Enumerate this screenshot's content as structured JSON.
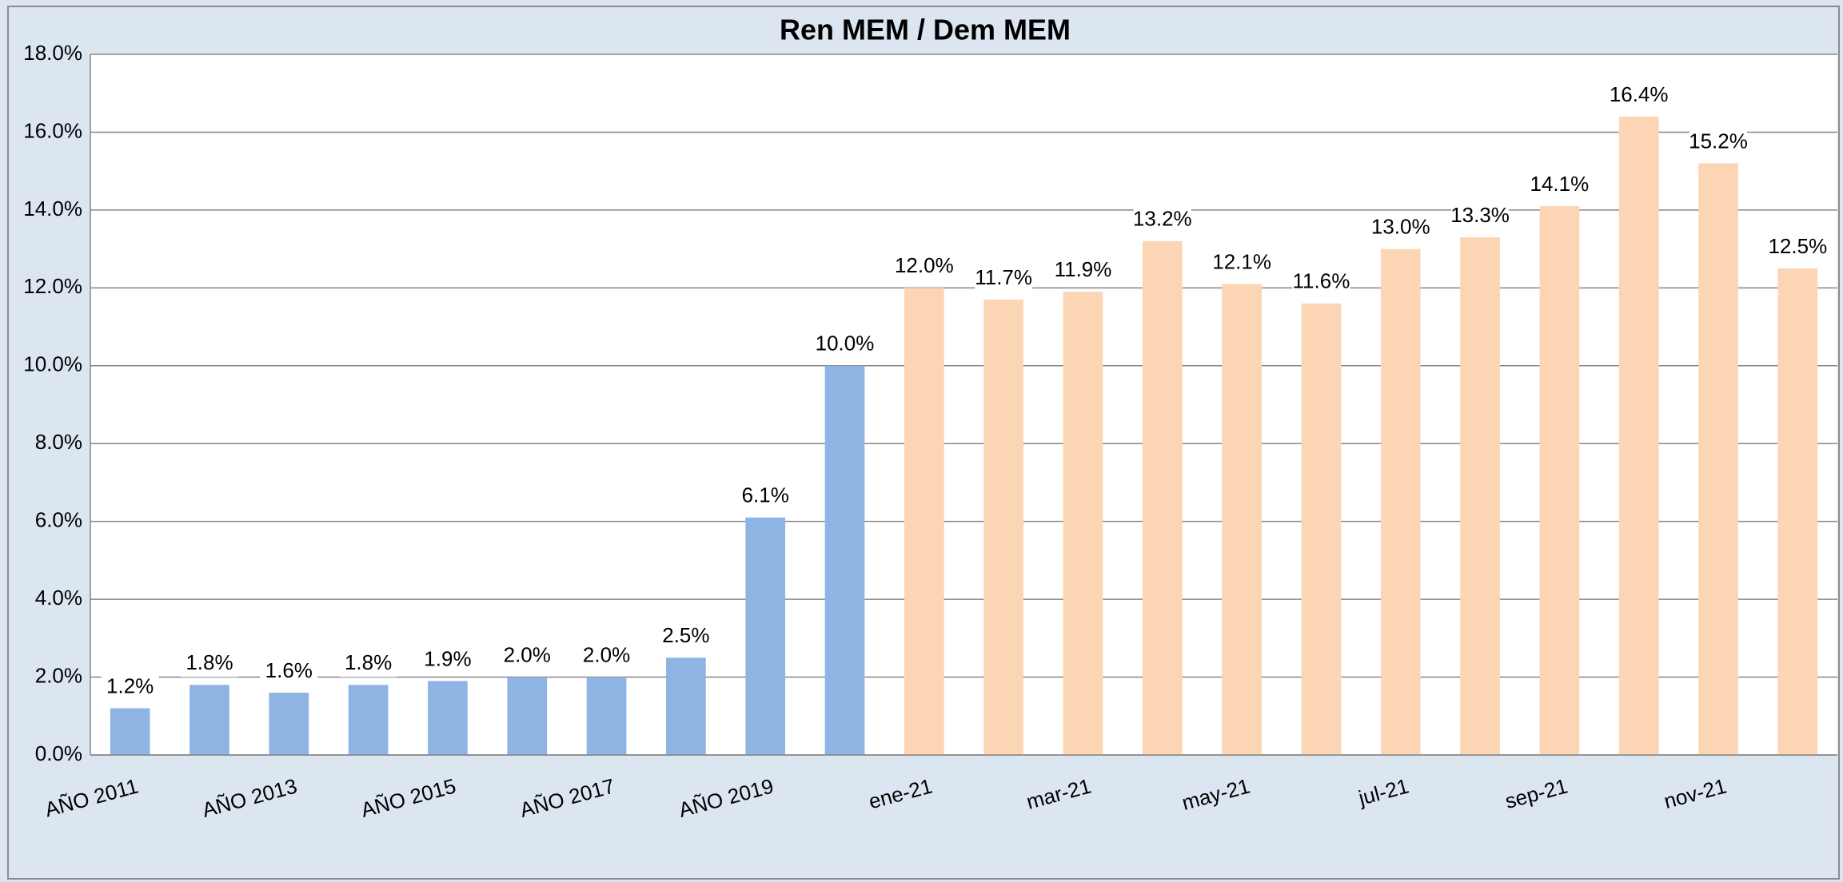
{
  "chart_data": {
    "type": "bar",
    "title": "Ren MEM / Dem MEM",
    "categories": [
      "AÑO 2011",
      null,
      "AÑO 2013",
      null,
      "AÑO 2015",
      null,
      "AÑO 2017",
      null,
      "AÑO 2019",
      null,
      "ene-21",
      null,
      "mar-21",
      null,
      "may-21",
      null,
      "jul-21",
      null,
      "sep-21",
      null,
      "nov-21",
      null
    ],
    "values": [
      1.2,
      1.8,
      1.6,
      1.8,
      1.9,
      2.0,
      2.0,
      2.5,
      6.1,
      10.0,
      12.0,
      11.7,
      11.9,
      13.2,
      12.1,
      11.6,
      13.0,
      13.3,
      14.1,
      16.4,
      15.2,
      12.5
    ],
    "value_labels": [
      "1.2%",
      "1.8%",
      "1.6%",
      "1.8%",
      "1.9%",
      "2.0%",
      "2.0%",
      "2.5%",
      "6.1%",
      "10.0%",
      "12.0%",
      "11.7%",
      "11.9%",
      "13.2%",
      "12.1%",
      "11.6%",
      "13.0%",
      "13.3%",
      "14.1%",
      "16.4%",
      "15.2%",
      "12.5%"
    ],
    "colors": [
      "#8eb4e3",
      "#8eb4e3",
      "#8eb4e3",
      "#8eb4e3",
      "#8eb4e3",
      "#8eb4e3",
      "#8eb4e3",
      "#8eb4e3",
      "#8eb4e3",
      "#8eb4e3",
      "#fcd5b5",
      "#fcd5b5",
      "#fcd5b5",
      "#fcd5b5",
      "#fcd5b5",
      "#fcd5b5",
      "#fcd5b5",
      "#fcd5b5",
      "#fcd5b5",
      "#fcd5b5",
      "#fcd5b5",
      "#fcd5b5"
    ],
    "ylim": [
      0,
      18
    ],
    "yticks": [
      {
        "value": 0,
        "label": "0.0%"
      },
      {
        "value": 2,
        "label": "2.0%"
      },
      {
        "value": 4,
        "label": "4.0%"
      },
      {
        "value": 6,
        "label": "6.0%"
      },
      {
        "value": 8,
        "label": "8.0%"
      },
      {
        "value": 10,
        "label": "10.0%"
      },
      {
        "value": 12,
        "label": "12.0%"
      },
      {
        "value": 14,
        "label": "14.0%"
      },
      {
        "value": 16,
        "label": "16.0%"
      },
      {
        "value": 18,
        "label": "18.0%"
      }
    ],
    "grid": true
  }
}
